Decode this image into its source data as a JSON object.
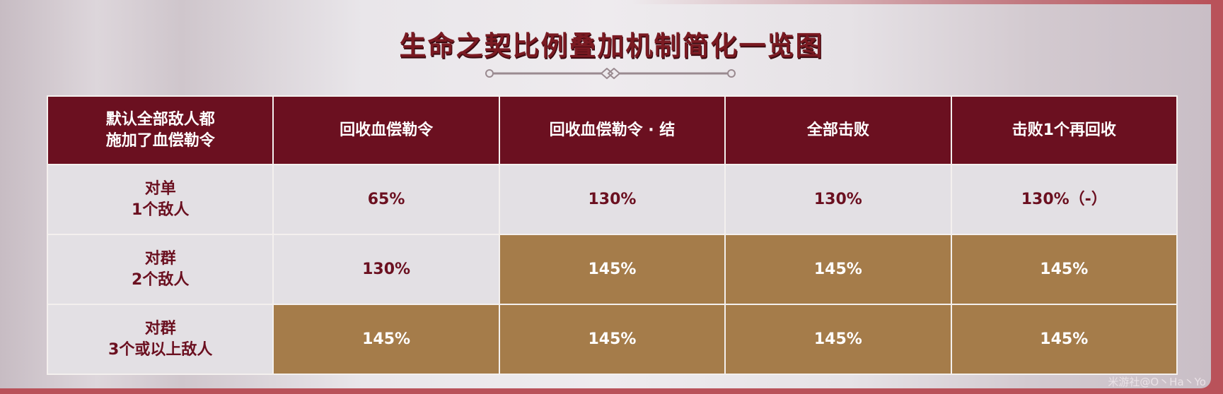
{
  "title": "生命之契比例叠加机制简化一览图",
  "table": {
    "corner": [
      "默认全部敌人都",
      "施加了血偿勒令"
    ],
    "headers": [
      "回收血偿勒令",
      "回收血偿勒令 · 结",
      "全部击败",
      "击败1个再回收"
    ],
    "rows": [
      {
        "label": [
          "对单",
          "1个敌人"
        ],
        "cells": [
          "65%",
          "130%",
          "130%",
          "130%（-）"
        ],
        "highlight": [
          false,
          false,
          false,
          false
        ]
      },
      {
        "label": [
          "对群",
          "2个敌人"
        ],
        "cells": [
          "130%",
          "145%",
          "145%",
          "145%"
        ],
        "highlight": [
          false,
          true,
          true,
          true
        ]
      },
      {
        "label": [
          "对群",
          "3个或以上敌人"
        ],
        "cells": [
          "145%",
          "145%",
          "145%",
          "145%"
        ],
        "highlight": [
          true,
          true,
          true,
          true
        ]
      }
    ]
  },
  "watermark": "米游社@O丶Ha丶Yo",
  "colors": {
    "header": "#6b1020",
    "highlight": "#a57c4a",
    "plain": "#e3e0e4",
    "text": "#6b1020"
  }
}
